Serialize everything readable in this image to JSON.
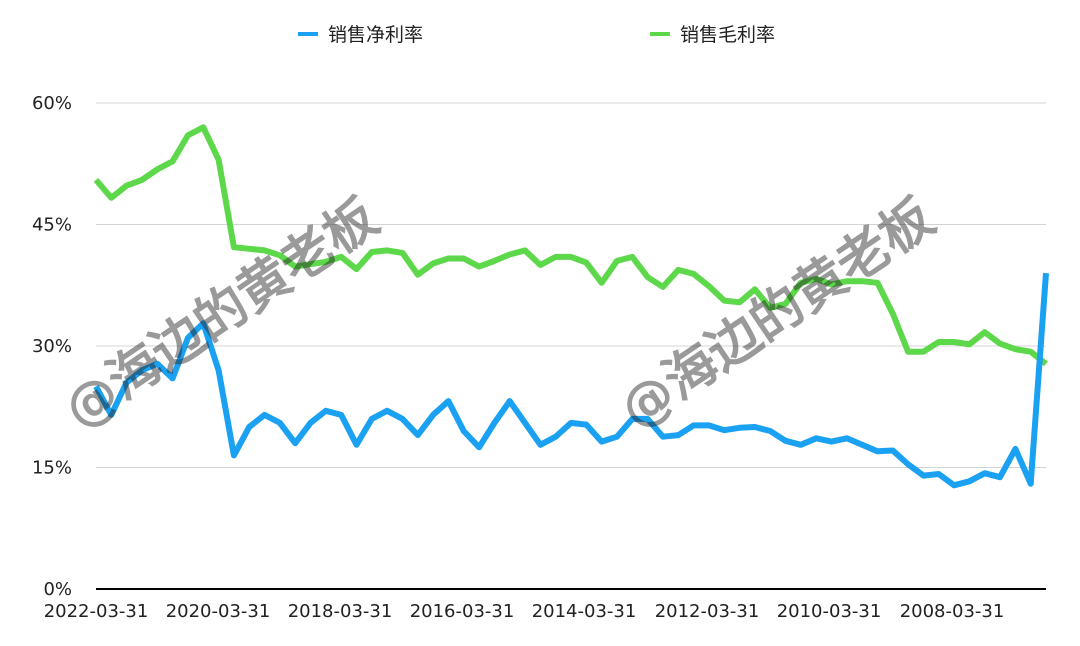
{
  "chart_data": {
    "type": "line",
    "title": "",
    "xlabel": "",
    "ylabel": "",
    "ylim": [
      0,
      60
    ],
    "y_ticks": [
      0,
      15,
      30,
      45,
      60
    ],
    "y_tick_labels": [
      "0%",
      "15%",
      "30%",
      "45%",
      "60%"
    ],
    "x_tick_labels": [
      "2022-03-31",
      "2020-03-31",
      "2018-03-31",
      "2016-03-31",
      "2014-03-31",
      "2012-03-31",
      "2010-03-31",
      "2008-03-31"
    ],
    "grid": true,
    "legend_position": "top",
    "series": [
      {
        "name": "销售净利率",
        "color": "#1ba1f2",
        "values": [
          25.0,
          21.5,
          25.5,
          27.0,
          27.8,
          26.0,
          31.0,
          32.8,
          27.0,
          16.5,
          20.0,
          21.5,
          20.5,
          18.0,
          20.5,
          22.0,
          21.5,
          17.8,
          21.0,
          22.0,
          21.0,
          19.0,
          21.5,
          23.2,
          19.5,
          17.5,
          20.5,
          23.2,
          20.5,
          17.8,
          18.8,
          20.5,
          20.3,
          18.2,
          18.8,
          21.0,
          21.0,
          18.8,
          19.0,
          20.2,
          20.2,
          19.6,
          19.9,
          20.0,
          19.5,
          18.3,
          17.8,
          18.6,
          18.2,
          18.6,
          17.8,
          17.0,
          17.1,
          15.4,
          14.0,
          14.2,
          12.8,
          13.3,
          14.3,
          13.8,
          17.3,
          13.0,
          39.0
        ]
      },
      {
        "name": "销售毛利率",
        "color": "#5dd84b",
        "values": [
          50.5,
          48.3,
          49.8,
          50.5,
          51.8,
          52.8,
          56.0,
          57.0,
          53.0,
          42.2,
          42.0,
          41.8,
          41.2,
          39.8,
          40.1,
          40.4,
          41.0,
          39.5,
          41.6,
          41.8,
          41.5,
          38.8,
          40.2,
          40.8,
          40.8,
          39.8,
          40.5,
          41.3,
          41.8,
          40.0,
          41.0,
          41.0,
          40.3,
          37.8,
          40.5,
          41.0,
          38.5,
          37.3,
          39.4,
          38.9,
          37.4,
          35.6,
          35.4,
          37.0,
          34.7,
          35.2,
          37.8,
          38.3,
          37.6,
          38.0,
          38.0,
          37.8,
          34.0,
          29.3,
          29.3,
          30.5,
          30.5,
          30.2,
          31.7,
          30.3,
          29.6,
          29.3,
          27.8
        ]
      }
    ],
    "watermark": "@海边的黄老板"
  }
}
